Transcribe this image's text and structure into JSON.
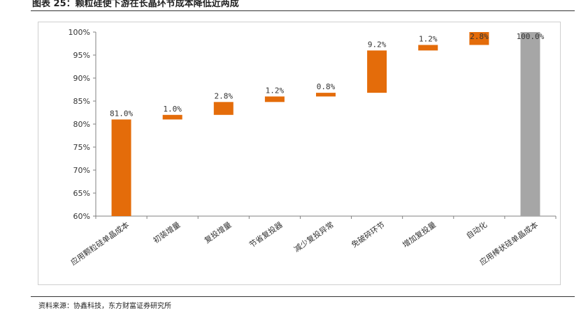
{
  "page": {
    "title": "图表 25：颗粒硅使下游在长晶环节成本降低近两成",
    "source": "资料来源：协鑫科技，东方财富证券研究所"
  },
  "colors": {
    "increase": "#E46C0A",
    "total": "#A6A6A6",
    "axis": "#808080",
    "text": "#333333"
  },
  "chart_data": {
    "type": "bar",
    "subtype": "waterfall",
    "categories": [
      "应用颗粒硅单晶成本",
      "初装增量",
      "复投增量",
      "节省复投器",
      "减少复投异常",
      "免破碎环节",
      "增加复投量",
      "自动化",
      "应用棒状硅单晶成本"
    ],
    "values": [
      81.0,
      1.0,
      2.8,
      1.2,
      0.8,
      9.2,
      1.2,
      2.8,
      100.0
    ],
    "kinds": [
      "total",
      "step",
      "step",
      "step",
      "step",
      "step",
      "step",
      "step",
      "total"
    ],
    "data_labels": [
      "81.0%",
      "1.0%",
      "2.8%",
      "1.2%",
      "0.8%",
      "9.2%",
      "1.2%",
      "2.8%",
      "100.0%"
    ],
    "y_ticks": [
      "60%",
      "65%",
      "70%",
      "75%",
      "80%",
      "85%",
      "90%",
      "95%",
      "100%"
    ],
    "ylim": [
      60,
      100
    ],
    "unit": "%",
    "grid": false,
    "legend": "none"
  }
}
